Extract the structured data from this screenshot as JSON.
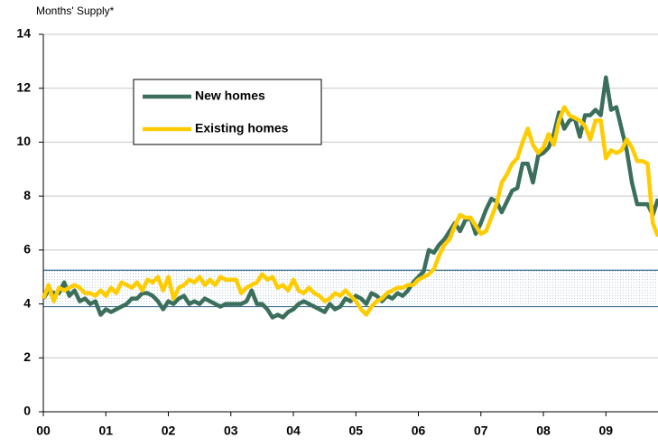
{
  "chart_data": {
    "type": "line",
    "ylabel": "Months' Supply*",
    "x": [
      0,
      1,
      2,
      3,
      4,
      5,
      6,
      7,
      8,
      9,
      10,
      11,
      12,
      13,
      14,
      15,
      16,
      17,
      18,
      19,
      20,
      21,
      22,
      23,
      24,
      25,
      26,
      27,
      28,
      29,
      30,
      31,
      32,
      33,
      34,
      35,
      36,
      37,
      38,
      39,
      40,
      41,
      42,
      43,
      44,
      45,
      46,
      47,
      48,
      49,
      50,
      51,
      52,
      53,
      54,
      55,
      56,
      57,
      58,
      59,
      60,
      61,
      62,
      63,
      64,
      65,
      66,
      67,
      68,
      69,
      70,
      71,
      72,
      73,
      74,
      75,
      76,
      77,
      78,
      79,
      80,
      81,
      82,
      83,
      84,
      85,
      86,
      87,
      88,
      89,
      90,
      91,
      92,
      93,
      94,
      95,
      96,
      97,
      98,
      99,
      100,
      101,
      102,
      103,
      104,
      105,
      106,
      107,
      108,
      109,
      110,
      111,
      112,
      113,
      114,
      115,
      116,
      117,
      118
    ],
    "xlim": [
      0,
      118
    ],
    "xticks": [
      {
        "value": 0,
        "label": "00"
      },
      {
        "value": 12,
        "label": "01"
      },
      {
        "value": 24,
        "label": "02"
      },
      {
        "value": 36,
        "label": "03"
      },
      {
        "value": 48,
        "label": "04"
      },
      {
        "value": 60,
        "label": "05"
      },
      {
        "value": 72,
        "label": "06"
      },
      {
        "value": 84,
        "label": "07"
      },
      {
        "value": 96,
        "label": "08"
      },
      {
        "value": 108,
        "label": "09"
      }
    ],
    "ylim": [
      0,
      14
    ],
    "yticks": [
      0,
      2,
      4,
      6,
      8,
      10,
      12,
      14
    ],
    "grid": true,
    "shaded_band": [
      3.9,
      5.25
    ],
    "series": [
      {
        "name": "New homes",
        "color": "#3b6f5b",
        "values": [
          4.2,
          4.5,
          4.4,
          4.4,
          4.8,
          4.3,
          4.5,
          4.1,
          4.2,
          4.0,
          4.1,
          3.6,
          3.8,
          3.7,
          3.8,
          3.9,
          4.0,
          4.2,
          4.2,
          4.4,
          4.4,
          4.3,
          4.1,
          3.8,
          4.1,
          4.0,
          4.2,
          4.3,
          4.0,
          4.1,
          4.0,
          4.2,
          4.1,
          4.0,
          3.9,
          4.0,
          4.0,
          4.0,
          4.0,
          4.1,
          4.5,
          4.0,
          4.0,
          3.8,
          3.5,
          3.6,
          3.5,
          3.7,
          3.8,
          4.0,
          4.1,
          4.0,
          3.9,
          3.8,
          3.7,
          4.0,
          3.8,
          3.9,
          4.2,
          4.1,
          4.3,
          4.2,
          4.0,
          4.4,
          4.3,
          4.1,
          4.3,
          4.2,
          4.4,
          4.3,
          4.5,
          4.8,
          5.0,
          5.2,
          6.0,
          5.9,
          6.2,
          6.4,
          6.7,
          7.0,
          6.7,
          7.1,
          7.2,
          6.6,
          7.0,
          7.5,
          7.9,
          7.8,
          7.4,
          7.8,
          8.2,
          8.3,
          9.2,
          9.2,
          8.5,
          9.5,
          9.6,
          9.8,
          10.3,
          11.1,
          10.5,
          10.8,
          10.9,
          10.2,
          11.0,
          11.0,
          11.2,
          11.0,
          12.4,
          11.2,
          11.3,
          10.5,
          9.7,
          8.5,
          7.7,
          7.7,
          7.7,
          7.3,
          7.9
        ]
      },
      {
        "name": "Existing homes",
        "color": "#ffcc00",
        "values": [
          4.2,
          4.7,
          4.1,
          4.6,
          4.5,
          4.6,
          4.7,
          4.6,
          4.4,
          4.4,
          4.3,
          4.5,
          4.3,
          4.6,
          4.4,
          4.8,
          4.7,
          4.6,
          4.8,
          4.5,
          4.9,
          4.8,
          5.0,
          4.5,
          5.0,
          4.2,
          4.6,
          4.7,
          4.9,
          4.8,
          5.0,
          4.7,
          4.9,
          4.7,
          5.0,
          4.9,
          4.9,
          4.9,
          4.4,
          4.6,
          4.7,
          4.8,
          5.1,
          4.9,
          5.0,
          4.6,
          4.7,
          4.5,
          4.9,
          4.5,
          4.4,
          4.6,
          4.4,
          4.3,
          4.1,
          4.2,
          4.4,
          4.3,
          4.5,
          4.3,
          4.1,
          3.8,
          3.6,
          3.9,
          4.1,
          4.2,
          4.4,
          4.5,
          4.6,
          4.6,
          4.7,
          4.7,
          4.9,
          5.0,
          5.1,
          5.3,
          5.8,
          6.2,
          6.4,
          6.9,
          7.3,
          7.2,
          7.2,
          6.9,
          6.6,
          6.7,
          7.2,
          7.7,
          8.5,
          8.8,
          9.2,
          9.4,
          10.0,
          10.5,
          9.9,
          9.6,
          9.8,
          10.3,
          9.9,
          10.8,
          11.3,
          11.0,
          10.9,
          10.8,
          10.6,
          10.1,
          10.8,
          10.8,
          9.4,
          9.7,
          9.6,
          9.7,
          10.1,
          9.8,
          9.3,
          9.3,
          9.2,
          7.0,
          6.5
        ]
      }
    ]
  }
}
